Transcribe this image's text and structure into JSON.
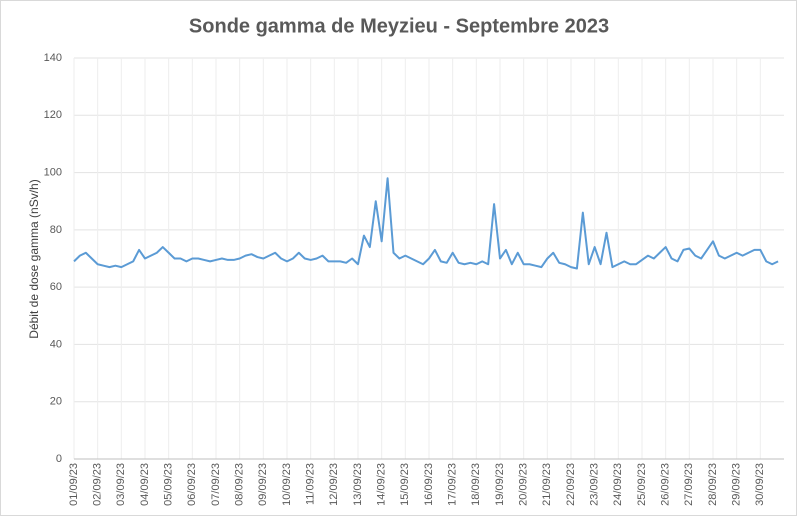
{
  "chart_data": {
    "type": "line",
    "title": "Sonde gamma de Meyzieu - Septembre 2023",
    "y_label": "Débit de dose gamma (nSv/h)",
    "categories": [
      "01/09/23",
      null,
      null,
      null,
      "02/09/23",
      null,
      null,
      null,
      "03/09/23",
      null,
      null,
      null,
      "04/09/23",
      null,
      null,
      null,
      "05/09/23",
      null,
      null,
      null,
      "06/09/23",
      null,
      null,
      null,
      "07/09/23",
      null,
      null,
      null,
      "08/09/23",
      null,
      null,
      null,
      "09/09/23",
      null,
      null,
      null,
      "10/09/23",
      null,
      null,
      null,
      "11/09/23",
      null,
      null,
      null,
      "12/09/23",
      null,
      null,
      null,
      "13/09/23",
      null,
      null,
      null,
      "14/09/23",
      null,
      null,
      null,
      "15/09/23",
      null,
      null,
      null,
      "16/09/23",
      null,
      null,
      null,
      "17/09/23",
      null,
      null,
      null,
      "18/09/23",
      null,
      null,
      null,
      "19/09/23",
      null,
      null,
      null,
      "20/09/23",
      null,
      null,
      null,
      "21/09/23",
      null,
      null,
      null,
      "22/09/23",
      null,
      null,
      null,
      "23/09/23",
      null,
      null,
      null,
      "24/09/23",
      null,
      null,
      null,
      "25/09/23",
      null,
      null,
      null,
      "26/09/23",
      null,
      null,
      null,
      "27/09/23",
      null,
      null,
      null,
      "28/09/23",
      null,
      null,
      null,
      "29/09/23",
      null,
      null,
      null,
      "30/09/23",
      null,
      null,
      null
    ],
    "series": [
      {
        "color": "#5b9bd5",
        "values": [
          69,
          71,
          72,
          70,
          68,
          67.5,
          67,
          67.5,
          67,
          68,
          69,
          73,
          70,
          71,
          72,
          74,
          72,
          70,
          70,
          69,
          70,
          70,
          69.5,
          69,
          69.5,
          70,
          69.5,
          69.5,
          70,
          71,
          71.5,
          70.5,
          70,
          71,
          72,
          70,
          69,
          70,
          72,
          70,
          69.5,
          70,
          71,
          69,
          69,
          69,
          68.5,
          70,
          68,
          78,
          74,
          90,
          76,
          98,
          72,
          70,
          71,
          70,
          69,
          68,
          70,
          73,
          69,
          68.5,
          72,
          68.5,
          68,
          68.5,
          68,
          69,
          68,
          89,
          70,
          73,
          68,
          72,
          68,
          68,
          67.5,
          67,
          70,
          72,
          68.5,
          68,
          67,
          66.5,
          86,
          68,
          74,
          68,
          79,
          67,
          68,
          69,
          68,
          68,
          69.5,
          71,
          70,
          72,
          74,
          70,
          69,
          73,
          73.5,
          71,
          70,
          73,
          76,
          71,
          70,
          71,
          72,
          71,
          72,
          73,
          73,
          69,
          68,
          69
        ]
      }
    ],
    "ylim": [
      0,
      140
    ],
    "yticks": [
      0,
      20,
      40,
      60,
      80,
      100,
      120,
      140
    ],
    "grid": true
  }
}
